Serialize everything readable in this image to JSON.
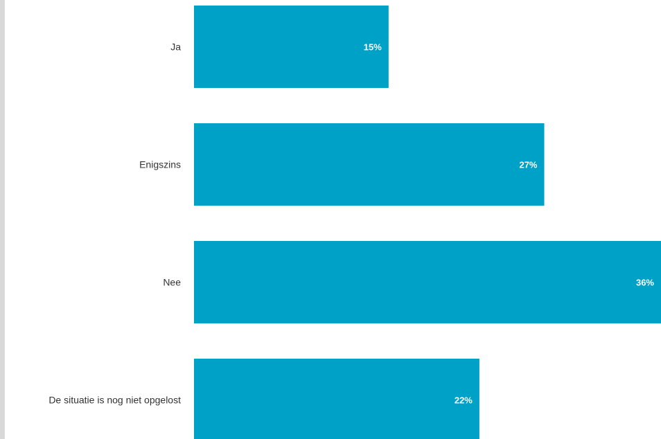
{
  "chart_data": {
    "type": "bar",
    "orientation": "horizontal",
    "categories": [
      "Ja",
      "Enigszins",
      "Nee",
      "De situatie is nog niet opgelost"
    ],
    "values": [
      15,
      27,
      36,
      22
    ],
    "value_labels": [
      "15%",
      "27%",
      "36%",
      "22%"
    ],
    "unit": "%",
    "title": "",
    "xlabel": "",
    "ylabel": "",
    "xlim": [
      0,
      36
    ],
    "grid": false,
    "legend": "none",
    "colors": {
      "bar": "#00a1c7",
      "value_text": "#ffffff",
      "category_text": "#333333",
      "left_strip": "#d9d9d9"
    }
  }
}
